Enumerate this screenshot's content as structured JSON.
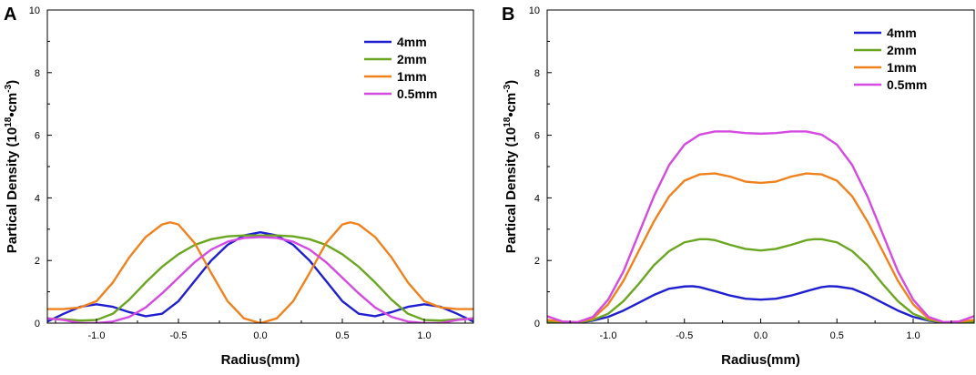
{
  "colors": {
    "4mm": "#1f1fd0",
    "2mm": "#6aa620",
    "1mm": "#f0821e",
    "0.5mm": "#d54ae0"
  },
  "chart_data": [
    {
      "panel": "A",
      "type": "line",
      "xlabel": "Radius(mm)",
      "ylabel_main": "Partical Density (10",
      "ylabel_sup1": "18",
      "ylabel_mid": "•cm",
      "ylabel_sup2": "-3",
      "ylabel_end": ")",
      "xlim": [
        -1.3,
        1.3
      ],
      "ylim": [
        0,
        10
      ],
      "xticks": [
        -1.0,
        -0.5,
        0.0,
        0.5,
        1.0
      ],
      "xtick_labels": [
        "-1.0",
        "-0.5",
        "0.0",
        "0.5",
        "1.0"
      ],
      "yticks": [
        0,
        2,
        4,
        6,
        8,
        10
      ],
      "ytick_labels": [
        "0",
        "2",
        "4",
        "6",
        "8",
        "10"
      ],
      "legend": "top-right",
      "series": [
        {
          "name": "4mm",
          "color": "#1f1fd0",
          "x": [
            -1.3,
            -1.2,
            -1.1,
            -1.0,
            -0.9,
            -0.8,
            -0.7,
            -0.6,
            -0.5,
            -0.4,
            -0.3,
            -0.2,
            -0.1,
            0.0,
            0.1,
            0.2,
            0.3,
            0.4,
            0.5,
            0.6,
            0.7,
            0.8,
            0.9,
            1.0,
            1.1,
            1.2,
            1.3
          ],
          "y": [
            0.05,
            0.3,
            0.52,
            0.6,
            0.52,
            0.35,
            0.22,
            0.3,
            0.7,
            1.35,
            2.0,
            2.5,
            2.8,
            2.9,
            2.8,
            2.5,
            2.0,
            1.35,
            0.7,
            0.3,
            0.22,
            0.35,
            0.52,
            0.6,
            0.52,
            0.3,
            0.05
          ]
        },
        {
          "name": "2mm",
          "color": "#6aa620",
          "x": [
            -1.3,
            -1.2,
            -1.1,
            -1.0,
            -0.9,
            -0.8,
            -0.7,
            -0.6,
            -0.5,
            -0.4,
            -0.3,
            -0.2,
            -0.1,
            0.0,
            0.1,
            0.2,
            0.3,
            0.4,
            0.5,
            0.6,
            0.7,
            0.8,
            0.9,
            1.0,
            1.1,
            1.2,
            1.3
          ],
          "y": [
            0.15,
            0.12,
            0.08,
            0.1,
            0.3,
            0.75,
            1.3,
            1.8,
            2.2,
            2.5,
            2.68,
            2.77,
            2.8,
            2.8,
            2.8,
            2.77,
            2.68,
            2.5,
            2.2,
            1.8,
            1.3,
            0.75,
            0.3,
            0.1,
            0.08,
            0.12,
            0.15
          ]
        },
        {
          "name": "1mm",
          "color": "#f0821e",
          "x": [
            -1.3,
            -1.2,
            -1.1,
            -1.0,
            -0.9,
            -0.8,
            -0.7,
            -0.6,
            -0.55,
            -0.5,
            -0.4,
            -0.3,
            -0.2,
            -0.1,
            0.0,
            0.1,
            0.2,
            0.3,
            0.4,
            0.5,
            0.55,
            0.6,
            0.7,
            0.8,
            0.9,
            1.0,
            1.1,
            1.2,
            1.3
          ],
          "y": [
            0.45,
            0.45,
            0.5,
            0.7,
            1.3,
            2.1,
            2.75,
            3.15,
            3.22,
            3.15,
            2.55,
            1.6,
            0.7,
            0.15,
            0.0,
            0.15,
            0.7,
            1.6,
            2.55,
            3.15,
            3.22,
            3.15,
            2.75,
            2.1,
            1.3,
            0.7,
            0.5,
            0.45,
            0.45
          ]
        },
        {
          "name": "0.5mm",
          "color": "#d54ae0",
          "x": [
            -1.3,
            -1.2,
            -1.1,
            -1.0,
            -0.9,
            -0.8,
            -0.7,
            -0.6,
            -0.5,
            -0.4,
            -0.3,
            -0.2,
            -0.1,
            0.0,
            0.1,
            0.2,
            0.3,
            0.4,
            0.5,
            0.6,
            0.7,
            0.8,
            0.9,
            1.0,
            1.1,
            1.2,
            1.3
          ],
          "y": [
            0.15,
            0.1,
            0.0,
            0.0,
            0.05,
            0.2,
            0.5,
            0.95,
            1.45,
            1.95,
            2.35,
            2.6,
            2.72,
            2.75,
            2.72,
            2.6,
            2.35,
            1.95,
            1.45,
            0.95,
            0.5,
            0.2,
            0.05,
            0.0,
            0.0,
            0.1,
            0.15
          ]
        }
      ]
    },
    {
      "panel": "B",
      "type": "line",
      "xlabel": "Radius(mm)",
      "ylabel_main": "Partical Density (10",
      "ylabel_sup1": "18",
      "ylabel_mid": "•cm",
      "ylabel_sup2": "-3",
      "ylabel_end": ")",
      "xlim": [
        -1.4,
        1.4
      ],
      "ylim": [
        0,
        10
      ],
      "xticks": [
        -1.0,
        -0.5,
        0.0,
        0.5,
        1.0
      ],
      "xtick_labels": [
        "-1.0",
        "-0.5",
        "0.0",
        "0.5",
        "1.0"
      ],
      "yticks": [
        0,
        2,
        4,
        6,
        8,
        10
      ],
      "ytick_labels": [
        "0",
        "2",
        "4",
        "6",
        "8",
        "10"
      ],
      "legend": "top-right",
      "series": [
        {
          "name": "4mm",
          "color": "#1f1fd0",
          "x": [
            -1.4,
            -1.3,
            -1.2,
            -1.1,
            -1.0,
            -0.9,
            -0.8,
            -0.7,
            -0.6,
            -0.5,
            -0.45,
            -0.4,
            -0.3,
            -0.2,
            -0.1,
            0.0,
            0.1,
            0.2,
            0.3,
            0.4,
            0.45,
            0.5,
            0.6,
            0.7,
            0.8,
            0.9,
            1.0,
            1.1,
            1.2,
            1.3,
            1.4
          ],
          "y": [
            0.02,
            0.02,
            0.02,
            0.08,
            0.2,
            0.4,
            0.65,
            0.9,
            1.1,
            1.17,
            1.18,
            1.15,
            1.02,
            0.88,
            0.78,
            0.75,
            0.78,
            0.88,
            1.02,
            1.15,
            1.18,
            1.17,
            1.1,
            0.9,
            0.65,
            0.4,
            0.2,
            0.08,
            0.02,
            0.02,
            0.02
          ]
        },
        {
          "name": "2mm",
          "color": "#6aa620",
          "x": [
            -1.4,
            -1.3,
            -1.2,
            -1.1,
            -1.0,
            -0.9,
            -0.8,
            -0.7,
            -0.6,
            -0.5,
            -0.4,
            -0.35,
            -0.3,
            -0.2,
            -0.1,
            0.0,
            0.1,
            0.2,
            0.3,
            0.35,
            0.4,
            0.5,
            0.6,
            0.7,
            0.8,
            0.9,
            1.0,
            1.1,
            1.2,
            1.3,
            1.4
          ],
          "y": [
            0.05,
            0.03,
            0.02,
            0.1,
            0.3,
            0.7,
            1.25,
            1.85,
            2.3,
            2.58,
            2.68,
            2.68,
            2.65,
            2.5,
            2.37,
            2.32,
            2.37,
            2.5,
            2.65,
            2.68,
            2.68,
            2.58,
            2.3,
            1.85,
            1.25,
            0.7,
            0.3,
            0.1,
            0.02,
            0.03,
            0.05
          ]
        },
        {
          "name": "1mm",
          "color": "#f0821e",
          "x": [
            -1.4,
            -1.3,
            -1.2,
            -1.1,
            -1.0,
            -0.9,
            -0.8,
            -0.7,
            -0.6,
            -0.5,
            -0.4,
            -0.3,
            -0.2,
            -0.1,
            0.0,
            0.1,
            0.2,
            0.3,
            0.4,
            0.5,
            0.6,
            0.7,
            0.8,
            0.9,
            1.0,
            1.1,
            1.2,
            1.3,
            1.4
          ],
          "y": [
            0.1,
            0.05,
            0.03,
            0.15,
            0.6,
            1.35,
            2.3,
            3.25,
            4.05,
            4.55,
            4.75,
            4.78,
            4.68,
            4.52,
            4.48,
            4.52,
            4.68,
            4.78,
            4.75,
            4.55,
            4.05,
            3.25,
            2.3,
            1.35,
            0.6,
            0.15,
            0.03,
            0.05,
            0.1
          ]
        },
        {
          "name": "0.5mm",
          "color": "#d54ae0",
          "x": [
            -1.4,
            -1.3,
            -1.2,
            -1.1,
            -1.0,
            -0.9,
            -0.8,
            -0.7,
            -0.6,
            -0.5,
            -0.4,
            -0.3,
            -0.2,
            -0.1,
            0.0,
            0.1,
            0.2,
            0.3,
            0.4,
            0.5,
            0.6,
            0.7,
            0.8,
            0.9,
            1.0,
            1.1,
            1.2,
            1.3,
            1.4
          ],
          "y": [
            0.22,
            0.05,
            0.03,
            0.2,
            0.75,
            1.65,
            2.85,
            4.05,
            5.05,
            5.7,
            6.02,
            6.12,
            6.12,
            6.07,
            6.05,
            6.07,
            6.12,
            6.12,
            6.02,
            5.7,
            5.05,
            4.05,
            2.85,
            1.65,
            0.75,
            0.2,
            0.03,
            0.05,
            0.22
          ]
        }
      ]
    }
  ]
}
